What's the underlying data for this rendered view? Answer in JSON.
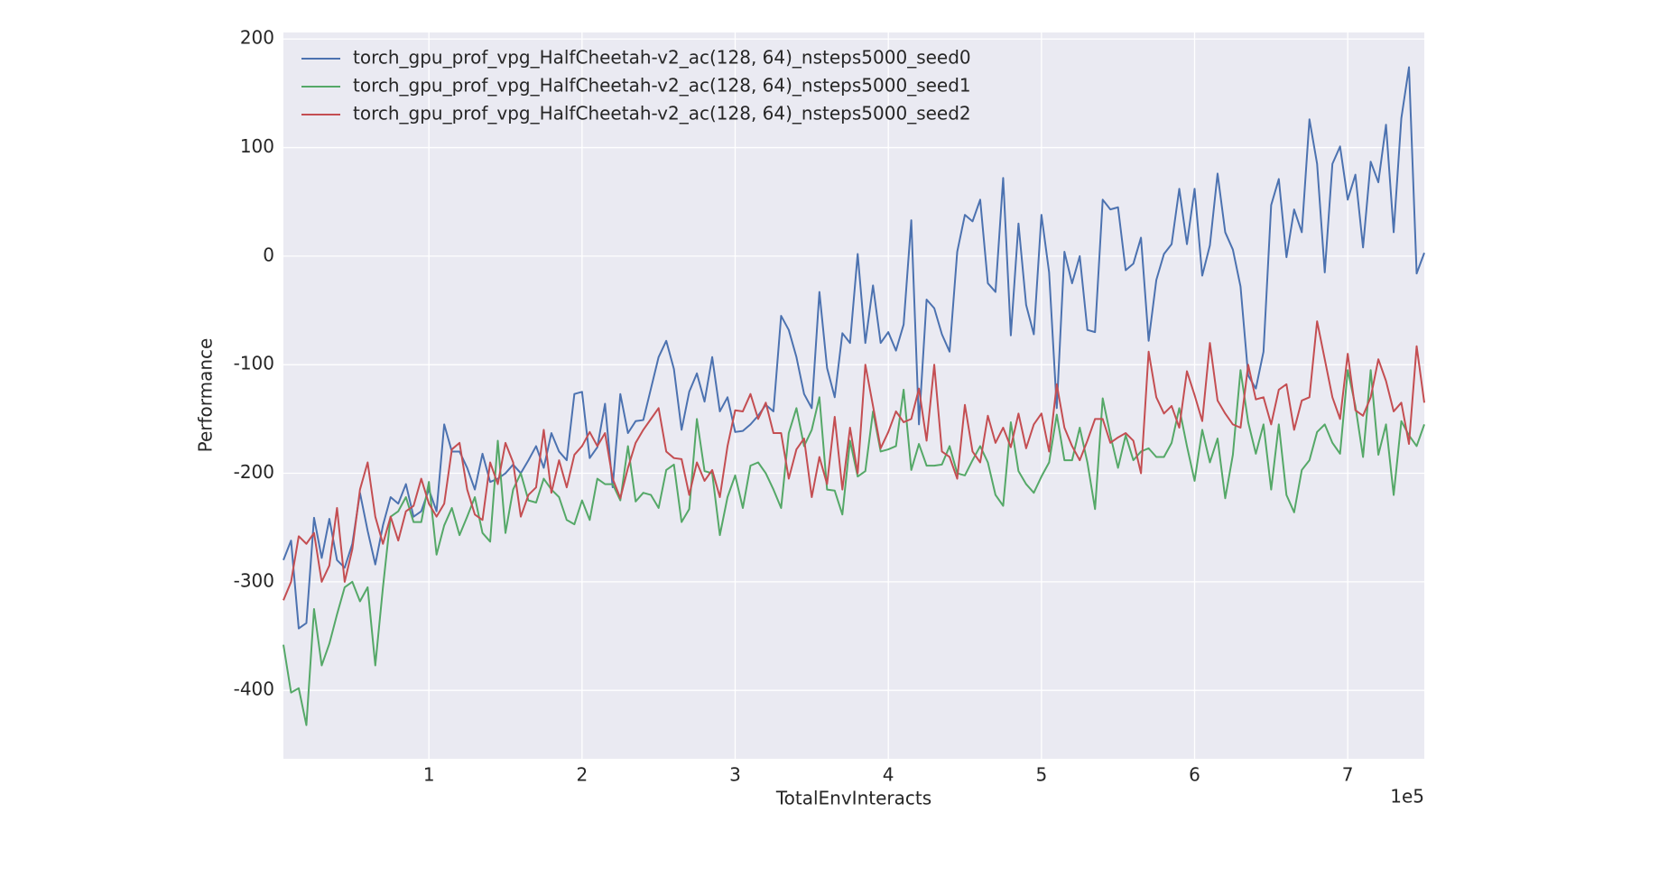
{
  "chart_data": {
    "type": "line",
    "xlabel": "TotalEnvInteracts",
    "ylabel": "Performance",
    "x_offset_label": "1e5",
    "xlim": [
      0.05,
      7.5
    ],
    "ylim": [
      -463,
      206
    ],
    "xticks": [
      1,
      2,
      3,
      4,
      5,
      6,
      7
    ],
    "yticks": [
      -400,
      -300,
      -200,
      -100,
      0,
      100,
      200
    ],
    "grid": true,
    "legend": "upper left",
    "x": [
      0.05,
      0.1,
      0.15,
      0.2,
      0.25,
      0.3,
      0.35,
      0.4,
      0.45,
      0.5,
      0.55,
      0.6,
      0.65,
      0.7,
      0.75,
      0.8,
      0.85,
      0.9,
      0.95,
      1,
      1.05,
      1.1,
      1.15,
      1.2,
      1.25,
      1.3,
      1.35,
      1.4,
      1.45,
      1.5,
      1.55,
      1.6,
      1.65,
      1.7,
      1.75,
      1.8,
      1.85,
      1.9,
      1.95,
      2,
      2.05,
      2.1,
      2.15,
      2.2,
      2.25,
      2.3,
      2.35,
      2.4,
      2.45,
      2.5,
      2.55,
      2.6,
      2.65,
      2.7,
      2.75,
      2.8,
      2.85,
      2.9,
      2.95,
      3,
      3.05,
      3.1,
      3.15,
      3.2,
      3.25,
      3.3,
      3.35,
      3.4,
      3.45,
      3.5,
      3.55,
      3.6,
      3.65,
      3.7,
      3.75,
      3.8,
      3.85,
      3.9,
      3.95,
      4,
      4.05,
      4.1,
      4.15,
      4.2,
      4.25,
      4.3,
      4.35,
      4.4,
      4.45,
      4.5,
      4.55,
      4.6,
      4.65,
      4.7,
      4.75,
      4.8,
      4.85,
      4.9,
      4.95,
      5,
      5.05,
      5.1,
      5.15,
      5.2,
      5.25,
      5.3,
      5.35,
      5.4,
      5.45,
      5.5,
      5.55,
      5.6,
      5.65,
      5.7,
      5.75,
      5.8,
      5.85,
      5.9,
      5.95,
      6,
      6.05,
      6.1,
      6.15,
      6.2,
      6.25,
      6.3,
      6.35,
      6.4,
      6.45,
      6.5,
      6.55,
      6.6,
      6.65,
      6.7,
      6.75,
      6.8,
      6.85,
      6.9,
      6.95,
      7,
      7.05,
      7.1,
      7.15,
      7.2,
      7.25,
      7.3,
      7.35,
      7.4,
      7.45,
      7.5
    ],
    "series": [
      {
        "name": "torch_gpu_prof_vpg_HalfCheetah-v2_ac(128, 64)_nsteps5000_seed0",
        "color": "#4C72B0",
        "values": [
          -280,
          -262,
          -343,
          -338,
          -241,
          -278,
          -242,
          -280,
          -287,
          -265,
          -218,
          -253,
          -284,
          -248,
          -222,
          -228,
          -210,
          -240,
          -235,
          -215,
          -235,
          -155,
          -180,
          -180,
          -195,
          -215,
          -182,
          -208,
          -205,
          -200,
          -192,
          -200,
          -188,
          -175,
          -195,
          -163,
          -180,
          -188,
          -127,
          -125,
          -186,
          -176,
          -136,
          -213,
          -127,
          -163,
          -152,
          -151,
          -122,
          -93,
          -78,
          -104,
          -160,
          -125,
          -108,
          -134,
          -93,
          -143,
          -130,
          -162,
          -161,
          -155,
          -147,
          -137,
          -143,
          -55,
          -68,
          -93,
          -127,
          -140,
          -33,
          -103,
          -130,
          -71,
          -80,
          2,
          -80,
          -27,
          -80,
          -70,
          -87,
          -63,
          33,
          -155,
          -40,
          -48,
          -72,
          -88,
          4,
          38,
          32,
          52,
          -25,
          -33,
          72,
          -73,
          30,
          -45,
          -72,
          38,
          -15,
          -140,
          4,
          -25,
          0,
          -68,
          -70,
          52,
          43,
          45,
          -13,
          -7,
          17,
          -78,
          -22,
          2,
          11,
          62,
          11,
          62,
          -18,
          10,
          76,
          22,
          6,
          -28,
          -110,
          -122,
          -88,
          47,
          71,
          -1,
          43,
          22,
          126,
          85,
          -15,
          85,
          101,
          52,
          75,
          8,
          87,
          68,
          121,
          22,
          127,
          174,
          -16,
          3
        ]
      },
      {
        "name": "torch_gpu_prof_vpg_HalfCheetah-v2_ac(128, 64)_nsteps5000_seed1",
        "color": "#55A868",
        "values": [
          -358,
          -402,
          -398,
          -432,
          -325,
          -377,
          -357,
          -330,
          -305,
          -300,
          -318,
          -305,
          -377,
          -305,
          -240,
          -235,
          -222,
          -245,
          -245,
          -208,
          -275,
          -248,
          -232,
          -257,
          -240,
          -222,
          -255,
          -263,
          -170,
          -255,
          -215,
          -200,
          -225,
          -227,
          -205,
          -215,
          -222,
          -243,
          -247,
          -225,
          -243,
          -205,
          -210,
          -210,
          -225,
          -175,
          -226,
          -218,
          -220,
          -232,
          -197,
          -192,
          -245,
          -233,
          -150,
          -198,
          -200,
          -257,
          -222,
          -202,
          -232,
          -193,
          -190,
          -200,
          -215,
          -232,
          -163,
          -140,
          -175,
          -160,
          -130,
          -215,
          -216,
          -238,
          -170,
          -203,
          -198,
          -143,
          -180,
          -178,
          -175,
          -123,
          -197,
          -173,
          -193,
          -193,
          -192,
          -175,
          -200,
          -202,
          -188,
          -175,
          -190,
          -220,
          -230,
          -153,
          -198,
          -210,
          -218,
          -203,
          -190,
          -146,
          -188,
          -188,
          -158,
          -190,
          -233,
          -131,
          -165,
          -195,
          -165,
          -188,
          -180,
          -177,
          -185,
          -185,
          -172,
          -140,
          -175,
          -207,
          -160,
          -190,
          -168,
          -223,
          -183,
          -105,
          -153,
          -182,
          -155,
          -215,
          -155,
          -220,
          -236,
          -197,
          -188,
          -162,
          -155,
          -172,
          -182,
          -105,
          -138,
          -185,
          -105,
          -183,
          -155,
          -220,
          -152,
          -165,
          -175,
          -155
        ]
      },
      {
        "name": "torch_gpu_prof_vpg_HalfCheetah-v2_ac(128, 64)_nsteps5000_seed2",
        "color": "#C44E52",
        "values": [
          -317,
          -300,
          -258,
          -265,
          -255,
          -300,
          -285,
          -232,
          -300,
          -270,
          -215,
          -190,
          -240,
          -265,
          -240,
          -262,
          -235,
          -230,
          -205,
          -228,
          -240,
          -228,
          -178,
          -172,
          -215,
          -238,
          -243,
          -190,
          -210,
          -172,
          -190,
          -240,
          -220,
          -213,
          -160,
          -218,
          -188,
          -213,
          -183,
          -175,
          -162,
          -175,
          -163,
          -205,
          -223,
          -195,
          -172,
          -160,
          -150,
          -140,
          -180,
          -186,
          -187,
          -220,
          -190,
          -207,
          -197,
          -222,
          -175,
          -142,
          -143,
          -127,
          -150,
          -135,
          -163,
          -163,
          -205,
          -178,
          -168,
          -222,
          -185,
          -210,
          -148,
          -215,
          -158,
          -200,
          -100,
          -138,
          -177,
          -162,
          -143,
          -153,
          -150,
          -122,
          -170,
          -100,
          -180,
          -185,
          -205,
          -137,
          -180,
          -190,
          -147,
          -172,
          -158,
          -176,
          -145,
          -177,
          -155,
          -145,
          -180,
          -118,
          -158,
          -175,
          -188,
          -170,
          -150,
          -150,
          -172,
          -167,
          -163,
          -170,
          -200,
          -88,
          -130,
          -145,
          -138,
          -158,
          -106,
          -128,
          -152,
          -80,
          -133,
          -145,
          -155,
          -158,
          -100,
          -132,
          -130,
          -155,
          -123,
          -118,
          -160,
          -133,
          -130,
          -60,
          -95,
          -130,
          -150,
          -90,
          -142,
          -147,
          -130,
          -95,
          -115,
          -143,
          -135,
          -173,
          -83,
          -135
        ]
      }
    ]
  }
}
